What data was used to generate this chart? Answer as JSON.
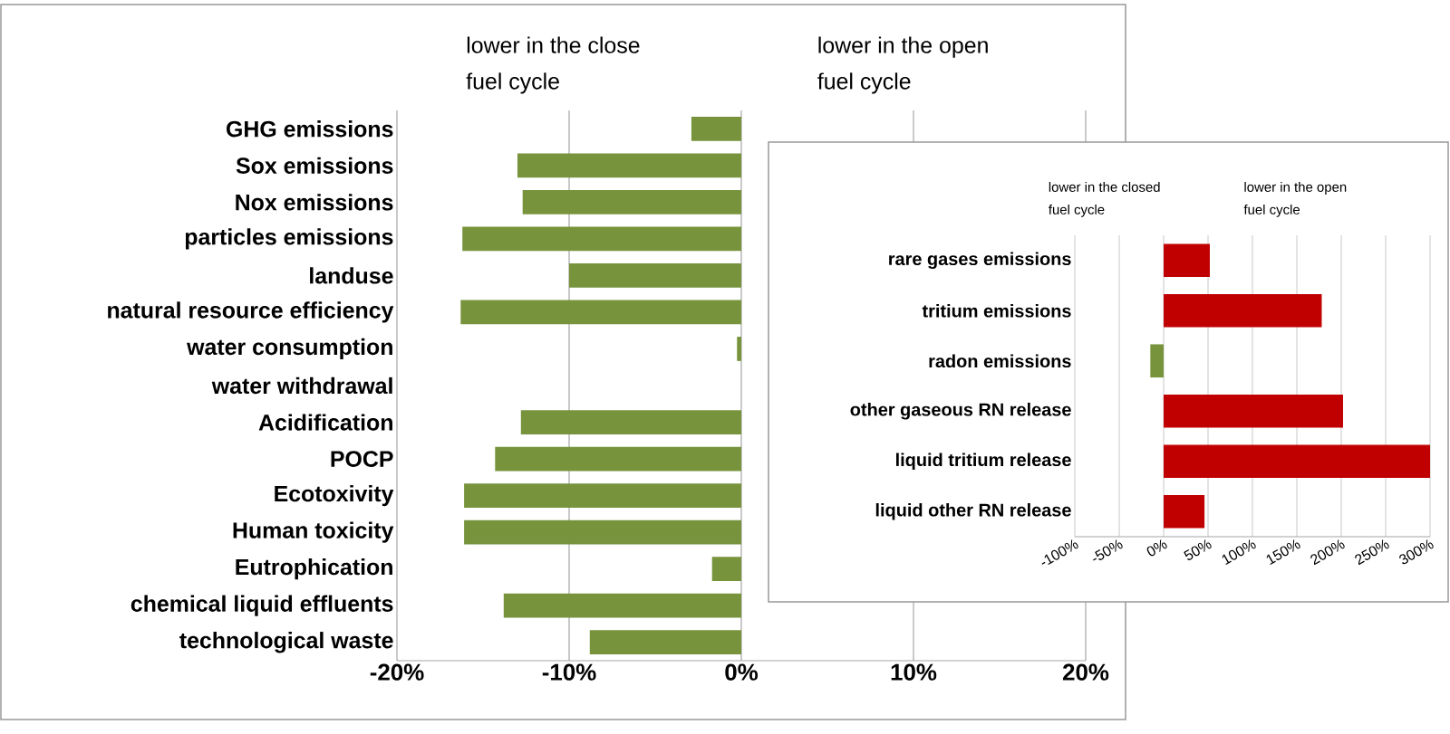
{
  "chart_data": [
    {
      "type": "bar",
      "orientation": "horizontal",
      "categories": [
        "GHG emissions",
        "Sox emissions",
        "Nox emissions",
        "particles emissions",
        "landuse",
        "natural resource efficiency",
        "water consumption",
        "water withdrawal",
        "Acidification",
        "POCP",
        "Ecotoxivity",
        "Human toxicity",
        "Eutrophication",
        "chemical liquid effluents",
        "technological waste"
      ],
      "values": [
        -2.9,
        -13.0,
        -12.7,
        -16.2,
        -10.0,
        -16.3,
        -0.25,
        null,
        -12.8,
        -14.3,
        -16.1,
        -16.1,
        -1.7,
        -13.8,
        -8.8
      ],
      "color": "#77933c",
      "xlim": [
        -20,
        20
      ],
      "xticks": [
        {
          "value": -20,
          "label": "-20%"
        },
        {
          "value": -10,
          "label": "-10%"
        },
        {
          "value": 0,
          "label": "0%"
        },
        {
          "value": 10,
          "label": "10%"
        },
        {
          "value": 20,
          "label": "20%"
        }
      ],
      "grid": "x",
      "annotations": [
        "lower in the close fuel cycle",
        "lower in the open fuel cycle"
      ]
    },
    {
      "type": "bar",
      "orientation": "horizontal",
      "categories": [
        "rare gases emissions",
        "tritium emissions",
        "radon emissions",
        "other gaseous RN release",
        "liquid tritium release",
        "liquid other RN release"
      ],
      "values": [
        52,
        178,
        -15,
        202,
        300,
        46
      ],
      "colors": [
        "#c00000",
        "#c00000",
        "#77933c",
        "#c00000",
        "#c00000",
        "#c00000"
      ],
      "xlim": [
        -100,
        300
      ],
      "xticks": [
        {
          "value": -100,
          "label": "-100%"
        },
        {
          "value": -50,
          "label": "-50%"
        },
        {
          "value": 0,
          "label": "0%"
        },
        {
          "value": 50,
          "label": "50%"
        },
        {
          "value": 100,
          "label": "100%"
        },
        {
          "value": 150,
          "label": "150%"
        },
        {
          "value": 200,
          "label": "200%"
        },
        {
          "value": 250,
          "label": "250%"
        },
        {
          "value": 300,
          "label": "300%"
        }
      ],
      "grid": "x",
      "annotations": [
        "lower in the closed fuel cycle",
        "lower in the open fuel cycle"
      ]
    }
  ]
}
